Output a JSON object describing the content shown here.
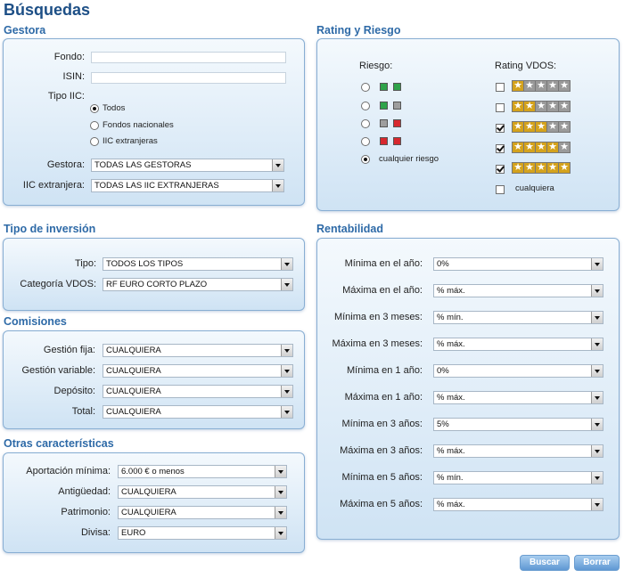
{
  "page_title": "Búsquedas",
  "gestora": {
    "title": "Gestora",
    "fondo_label": "Fondo:",
    "fondo_value": "",
    "isin_label": "ISIN:",
    "isin_value": "",
    "tipo_label": "Tipo IIC:",
    "tipo_options": [
      {
        "label": "Todos",
        "selected": true
      },
      {
        "label": "Fondos nacionales",
        "selected": false
      },
      {
        "label": "IIC extranjeras",
        "selected": false
      }
    ],
    "gestora_label": "Gestora:",
    "gestora_value": "TODAS LAS GESTORAS",
    "iic_label": "IIC extranjera:",
    "iic_value": "TODAS LAS IIC EXTRANJERAS"
  },
  "rating": {
    "title": "Rating y Riesgo",
    "riesgo_label": "Riesgo:",
    "rating_label": "Rating VDOS:",
    "riesgo_options": [
      {
        "colors": [
          "green",
          "green"
        ],
        "selected": false
      },
      {
        "colors": [
          "green",
          "grey"
        ],
        "selected": false
      },
      {
        "colors": [
          "grey",
          "red"
        ],
        "selected": false
      },
      {
        "colors": [
          "red",
          "red"
        ],
        "selected": false
      },
      {
        "label": "cualquier riesgo",
        "selected": true
      }
    ],
    "rating_options": [
      {
        "stars": 1,
        "checked": false
      },
      {
        "stars": 2,
        "checked": false
      },
      {
        "stars": 3,
        "checked": true
      },
      {
        "stars": 4,
        "checked": true
      },
      {
        "stars": 5,
        "checked": true
      },
      {
        "label": "cualquiera",
        "checked": false
      }
    ],
    "star_glyph": "★"
  },
  "tipo_inversion": {
    "title": "Tipo de inversión",
    "tipo_label": "Tipo:",
    "tipo_value": "TODOS LOS TIPOS",
    "categoria_label": "Categoría VDOS:",
    "categoria_value": "RF EURO CORTO PLAZO"
  },
  "comisiones": {
    "title": "Comisiones",
    "gestion_fija_label": "Gestión fija:",
    "gestion_fija_value": "CUALQUIERA",
    "gestion_variable_label": "Gestión variable:",
    "gestion_variable_value": "CUALQUIERA",
    "deposito_label": "Depósito:",
    "deposito_value": "CUALQUIERA",
    "total_label": "Total:",
    "total_value": "CUALQUIERA"
  },
  "otras": {
    "title": "Otras características",
    "aportacion_label": "Aportación mínima:",
    "aportacion_value": "6.000 € o menos",
    "antiguedad_label": "Antigüedad:",
    "antiguedad_value": "CUALQUIERA",
    "patrimonio_label": "Patrimonio:",
    "patrimonio_value": "CUALQUIERA",
    "divisa_label": "Divisa:",
    "divisa_value": "EURO"
  },
  "rentabilidad": {
    "title": "Rentabilidad",
    "rows": [
      {
        "label": "Mínima en el año:",
        "value": "0%"
      },
      {
        "label": "Máxima en el año:",
        "value": "% máx."
      },
      {
        "label": "Mínima en 3 meses:",
        "value": "% mín."
      },
      {
        "label": "Máxima en 3 meses:",
        "value": "% máx."
      },
      {
        "label": "Mínima en 1 año:",
        "value": "0%"
      },
      {
        "label": "Máxima en 1 año:",
        "value": "% máx."
      },
      {
        "label": "Mínima en 3 años:",
        "value": "5%"
      },
      {
        "label": "Máxima en 3 años:",
        "value": "% máx."
      },
      {
        "label": "Mínima en 5 años:",
        "value": "% mín."
      },
      {
        "label": "Máxima en 5 años:",
        "value": "% máx."
      }
    ]
  },
  "buttons": {
    "buscar": "Buscar",
    "borrar": "Borrar"
  },
  "colors": {
    "title": "#1d4f86",
    "section_title": "#2e6aa7",
    "panel_border": "#88aed3",
    "button": "#5f98d3",
    "star_gold": "#d4a21c",
    "star_grey": "#9a9a9a",
    "risk_green": "#2fa34a",
    "risk_grey": "#9e9e9e",
    "risk_red": "#d7282e"
  }
}
